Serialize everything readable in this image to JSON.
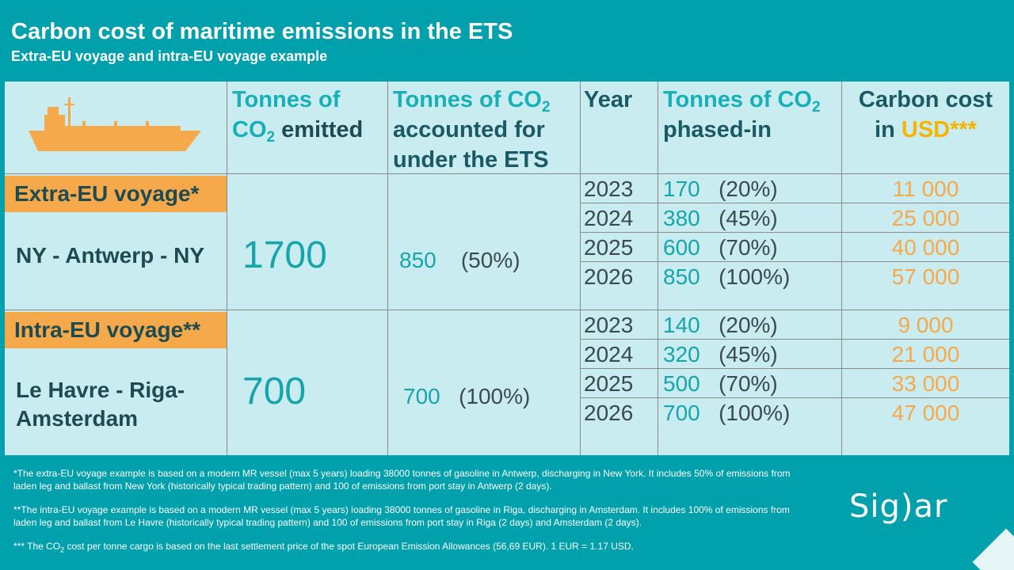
{
  "title": "Carbon cost of maritime emissions in the ETS",
  "subtitle": "Extra-EU  voyage and intra-EU  voyage example",
  "colors": {
    "background": "#00a0ad",
    "panel": "#c9ecf0",
    "accent_orange": "#f6a94a",
    "accent_teal": "#17b0b8",
    "accent_yellow": "#f6b400"
  },
  "icons": {
    "ship": "ship-icon"
  },
  "headers": {
    "col1_a": "Tonnes of",
    "col1_b_pre": "CO",
    "col1_b_sub": "2",
    "col1_b_post": " emitted",
    "col2_a_pre": "Tonnes of CO",
    "col2_a_sub": "2",
    "col2_b": "accounted for",
    "col2_c": "under the ETS",
    "col3": "Year",
    "col4_a_pre": "Tonnes of CO",
    "col4_a_sub": "2",
    "col4_b": "phased-in",
    "col5_a": "Carbon cost",
    "col5_b_pre": "in ",
    "col5_b_hl": "USD***"
  },
  "extra": {
    "label": "Extra-EU voyage*",
    "route": "NY - Antwerp - NY",
    "emitted": "1700",
    "accounted": "850",
    "accounted_pct": "(50%)",
    "rows": [
      {
        "year": "2023",
        "tonnes": "170",
        "pct": "(20%)",
        "cost": "11 000"
      },
      {
        "year": "2024",
        "tonnes": "380",
        "pct": "(45%)",
        "cost": "25 000"
      },
      {
        "year": "2025",
        "tonnes": "600",
        "pct": "(70%)",
        "cost": "40 000"
      },
      {
        "year": "2026",
        "tonnes": "850",
        "pct": "(100%)",
        "cost": "57 000"
      }
    ]
  },
  "intra": {
    "label": "Intra-EU voyage**",
    "route": "Le Havre - Riga- Amsterdam",
    "emitted": "700",
    "accounted": "700",
    "accounted_pct": "(100%)",
    "rows": [
      {
        "year": "2023",
        "tonnes": "140",
        "pct": "(20%)",
        "cost": "9 000"
      },
      {
        "year": "2024",
        "tonnes": "320",
        "pct": "(45%)",
        "cost": "21 000"
      },
      {
        "year": "2025",
        "tonnes": "500",
        "pct": "(70%)",
        "cost": "33 000"
      },
      {
        "year": "2026",
        "tonnes": "700",
        "pct": "(100%)",
        "cost": "47 000"
      }
    ]
  },
  "footnotes": {
    "f1": "*The  extra-EU voyage example is based on a modern MR vessel (max 5 years) loading 38000 tonnes of gasoline in Antwerp, discharging in New York. It includes 50% of emissions from  laden leg and ballast from New York (historically typical trading pattern)  and 100 of emissions from port stay in Antwerp (2 days).",
    "f2": "**The  intra-EU voyage  example is based on a modern MR vessel (max 5 years) loading 38000 tonnes of gasoline in Riga, discharging in Amsterdam. It includes 100% of emissions from laden leg and ballast from Le Havre  (historically typical trading pattern) and 100 of emissions from port stay in Riga (2 days) and Amsterdam (2 days).",
    "f3_pre": "*** The  CO",
    "f3_sub": "2",
    "f3_post": " cost per tonne cargo is based on the last settlement price of the spot European  Emission Allowances (56,69 EUR).  1 EUR = 1.17 USD."
  },
  "logo": "Sig)ar"
}
